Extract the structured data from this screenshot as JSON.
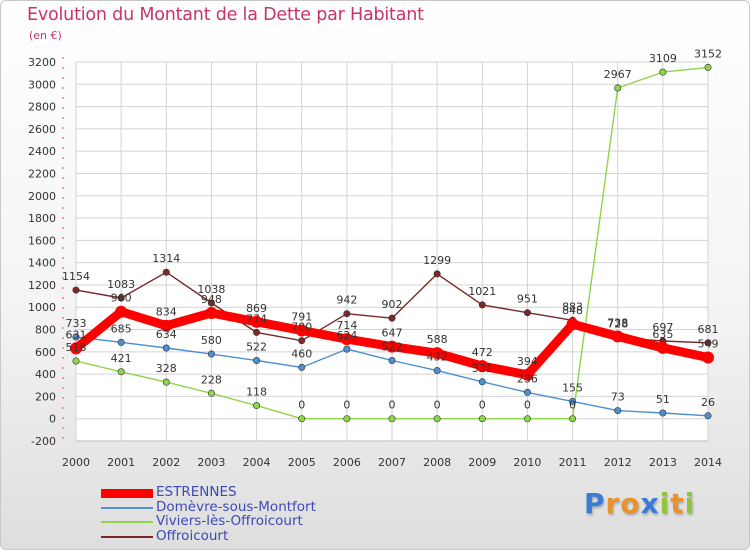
{
  "header": {
    "title": "Evolution du Montant de la Dette par Habitant",
    "unit": "(en €)"
  },
  "logo": {
    "text": "Proxiti",
    "letter_colors": [
      "#3a7bd5",
      "#e8912d",
      "#e8912d",
      "#3a7bd5",
      "#8fc43c",
      "#e8912d",
      "#8fc43c"
    ]
  },
  "chart_data": {
    "type": "line",
    "title": "Evolution du Montant de la Dette par Habitant",
    "subtitle": "(en €)",
    "xlabel": "",
    "ylabel": "",
    "x": [
      "2000",
      "2001",
      "2002",
      "2003",
      "2004",
      "2005",
      "2006",
      "2007",
      "2008",
      "2009",
      "2010",
      "2011",
      "2012",
      "2013",
      "2014"
    ],
    "yticks": [
      -200,
      0,
      200,
      400,
      600,
      800,
      1000,
      1200,
      1400,
      1600,
      1800,
      2000,
      2200,
      2400,
      2600,
      2800,
      3000,
      3200
    ],
    "ylim": [
      -200,
      3200
    ],
    "grid": true,
    "legend": "bottom-left",
    "series": [
      {
        "name": "ESTRENNES",
        "color": "#ff0000",
        "values": [
          631,
          960,
          834,
          948,
          869,
          791,
          714,
          647,
          588,
          472,
          394,
          848,
          738,
          635,
          549
        ],
        "labels": [
          "631",
          "960",
          "834",
          "948",
          "869",
          "791",
          "714",
          "647",
          "588",
          "472",
          "394",
          "848",
          "738",
          "635",
          "549"
        ]
      },
      {
        "name": "Domèvre-sous-Montfort",
        "color": "#4f8fd0",
        "values": [
          733,
          685,
          634,
          580,
          522,
          460,
          624,
          522,
          432,
          331,
          236,
          155,
          73,
          51,
          26
        ],
        "labels": [
          "733",
          "685",
          "634",
          "580",
          "522",
          "460",
          "624",
          "522",
          "432",
          "331",
          "236",
          "155",
          "73",
          "51",
          "26"
        ]
      },
      {
        "name": "Viviers-lès-Offroicourt",
        "color": "#8fd54a",
        "values": [
          518,
          421,
          328,
          228,
          118,
          0,
          0,
          0,
          0,
          0,
          0,
          0,
          2967,
          3109,
          3152
        ],
        "labels": [
          "518",
          "421",
          "328",
          "228",
          "118",
          "0",
          "0",
          "0",
          "0",
          "0",
          "0",
          "0",
          "2967",
          "3109",
          "3152"
        ]
      },
      {
        "name": "Offroicourt",
        "color": "#7a2828",
        "values": [
          1154,
          1083,
          1314,
          1038,
          774,
          700,
          942,
          902,
          1299,
          1021,
          951,
          883,
          728,
          697,
          681
        ],
        "labels": [
          "1154",
          "1083",
          "1314",
          "1038",
          "774",
          "700",
          "942",
          "902",
          "1299",
          "1021",
          "951",
          "883",
          "728",
          "697",
          "681"
        ]
      }
    ]
  }
}
